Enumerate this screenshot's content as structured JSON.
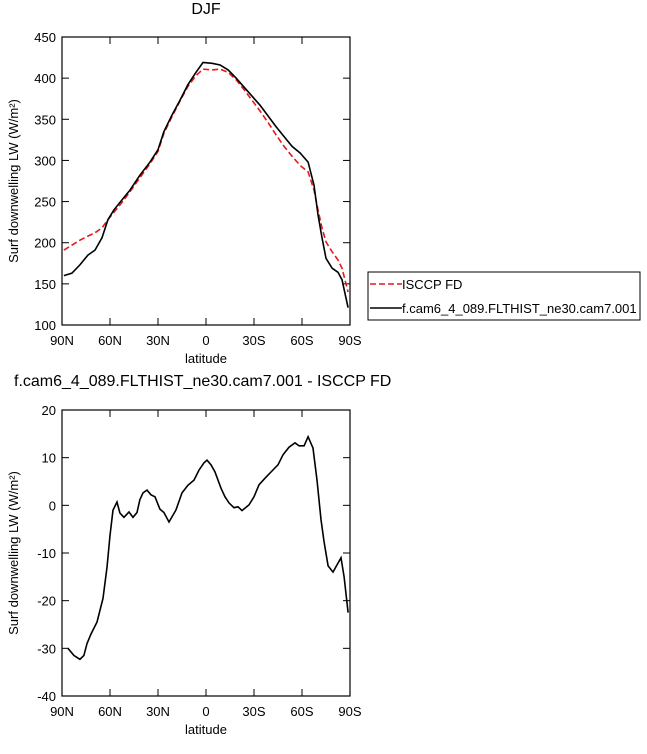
{
  "chart_data": [
    {
      "type": "line",
      "title": "DJF",
      "xlabel": "latitude",
      "ylabel": "Surf downwelling LW (W/m²)",
      "x": [
        88.8,
        83.8,
        78.8,
        73.8,
        69.4,
        65,
        61.3,
        57.5,
        52.5,
        47.5,
        41.3,
        35,
        30,
        26.3,
        21.3,
        16.3,
        11.3,
        6.3,
        1.9,
        -3.8,
        -8.8,
        -13.8,
        -18.8,
        -23.8,
        -28.8,
        -33.8,
        -38.8,
        -43.8,
        -48.8,
        -53.8,
        -58.8,
        -63.8,
        -67.5,
        -70,
        -72.5,
        -75,
        -78.8,
        -82.5,
        -85,
        -88.8
      ],
      "series": [
        {
          "name": "ISCCP FD",
          "color": "#e41a1c",
          "dash": "dashed",
          "values": [
            191,
            197,
            203,
            208,
            212,
            218,
            228,
            237,
            249,
            262,
            279,
            296,
            311,
            333,
            353,
            372,
            390,
            403,
            411,
            410,
            411,
            407,
            398,
            386,
            373,
            360,
            346,
            331,
            317,
            305,
            294,
            286,
            264,
            240,
            218,
            201,
            189,
            179,
            169,
            140
          ]
        },
        {
          "name": "f.cam6_4_089.FLTHIST_ne30.cam7.001",
          "color": "#000000",
          "dash": "solid",
          "values": [
            160,
            163,
            173,
            185,
            191,
            206,
            228,
            240,
            252,
            264,
            282,
            298,
            313,
            335,
            355,
            373,
            392,
            407,
            419,
            418,
            416,
            410,
            400,
            389,
            378,
            367,
            354,
            341,
            329,
            317,
            309,
            298,
            270,
            234,
            206,
            181,
            169,
            164,
            155,
            121
          ]
        }
      ],
      "xlim": [
        90,
        -90
      ],
      "xticks": [
        {
          "value": 90,
          "label": "90N"
        },
        {
          "value": 60,
          "label": "60N"
        },
        {
          "value": 30,
          "label": "30N"
        },
        0,
        {
          "value": -30,
          "label": "30S"
        },
        {
          "value": -60,
          "label": "60S"
        },
        {
          "value": -90,
          "label": "90S"
        }
      ],
      "ylim": [
        100,
        450
      ],
      "yticks": [
        100,
        150,
        200,
        250,
        300,
        350,
        400,
        450
      ],
      "legend": "outside right"
    },
    {
      "type": "line",
      "title": "f.cam6_4_089.FLTHIST_ne30.cam7.001 - ISCCP FD",
      "xlabel": "latitude",
      "ylabel": "Surf downwelling LW (W/m²)",
      "x": [
        86.3,
        82.5,
        78.8,
        76.3,
        74.4,
        71.9,
        68.1,
        64.4,
        61.9,
        60,
        58.1,
        55.6,
        53.8,
        51.3,
        48.1,
        45.6,
        43.1,
        41.3,
        39.4,
        36.9,
        34.4,
        31.9,
        28.8,
        26.3,
        23.1,
        18.8,
        15,
        11.3,
        7.5,
        4.4,
        1.3,
        -0.6,
        -3.1,
        -5.6,
        -9.4,
        -11.9,
        -14.4,
        -17.5,
        -20,
        -22.5,
        -26.9,
        -30,
        -33.1,
        -36.9,
        -40.6,
        -45,
        -48.1,
        -51.9,
        -55.6,
        -58.1,
        -61.3,
        -63.8,
        -66.9,
        -69.4,
        -71.9,
        -73.8,
        -76.3,
        -79.4,
        -81.9,
        -84.4,
        -86.3,
        -88.8
      ],
      "series": [
        {
          "name": "f.cam6_4_089.FLTHIST_ne30.cam7.001 - ISCCP FD",
          "color": "#000000",
          "dash": "solid",
          "values": [
            -30,
            -31.5,
            -32.3,
            -31.5,
            -29,
            -27,
            -24.5,
            -19.5,
            -13,
            -6.3,
            -1,
            0.7,
            -1.6,
            -2.5,
            -1.4,
            -2.5,
            -1.5,
            1.2,
            2.6,
            3.2,
            2.2,
            1.8,
            -0.8,
            -1.5,
            -3.5,
            -1,
            2.6,
            4.2,
            5.3,
            7.4,
            8.9,
            9.5,
            8.5,
            7,
            3.6,
            1.8,
            0.5,
            -0.5,
            -0.3,
            -1.1,
            0.1,
            1.8,
            4.3,
            5.7,
            7,
            8.5,
            10.6,
            12.2,
            13.1,
            12.5,
            12.5,
            14.4,
            12,
            5.3,
            -3,
            -7.7,
            -12.7,
            -14,
            -12.5,
            -11,
            -15,
            -22.5
          ]
        }
      ],
      "xlim": [
        90,
        -90
      ],
      "xticks": [
        {
          "value": 90,
          "label": "90N"
        },
        {
          "value": 60,
          "label": "60N"
        },
        {
          "value": 30,
          "label": "30N"
        },
        0,
        {
          "value": -30,
          "label": "30S"
        },
        {
          "value": -60,
          "label": "60S"
        },
        {
          "value": -90,
          "label": "90S"
        }
      ],
      "ylim": [
        -40,
        20
      ],
      "yticks": [
        -40,
        -30,
        -20,
        -10,
        0,
        10,
        20
      ]
    }
  ]
}
